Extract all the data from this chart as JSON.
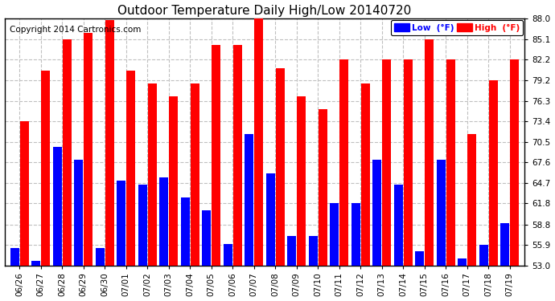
{
  "title": "Outdoor Temperature Daily High/Low 20140720",
  "copyright": "Copyright 2014 Cartronics.com",
  "legend_low": "Low  (°F)",
  "legend_high": "High  (°F)",
  "dates": [
    "06/26",
    "06/27",
    "06/28",
    "06/29",
    "06/30",
    "07/01",
    "07/02",
    "07/03",
    "07/04",
    "07/05",
    "07/06",
    "07/07",
    "07/08",
    "07/09",
    "07/10",
    "07/11",
    "07/12",
    "07/13",
    "07/14",
    "07/15",
    "07/16",
    "07/17",
    "07/18",
    "07/19"
  ],
  "highs": [
    73.4,
    80.6,
    85.1,
    86.0,
    87.8,
    80.6,
    78.8,
    77.0,
    78.8,
    84.2,
    84.2,
    88.0,
    81.0,
    77.0,
    75.2,
    82.2,
    78.8,
    82.2,
    82.2,
    85.1,
    82.2,
    71.6,
    79.2,
    82.2
  ],
  "lows": [
    55.4,
    53.6,
    69.8,
    68.0,
    55.4,
    65.0,
    64.4,
    65.5,
    62.6,
    60.8,
    56.0,
    71.6,
    66.0,
    57.2,
    57.2,
    61.8,
    61.8,
    68.0,
    64.4,
    55.0,
    68.0,
    54.0,
    55.9,
    59.0
  ],
  "ymin": 53.0,
  "ymax": 88.0,
  "yticks": [
    53.0,
    55.9,
    58.8,
    61.8,
    64.7,
    67.6,
    70.5,
    73.4,
    76.3,
    79.2,
    82.2,
    85.1,
    88.0
  ],
  "color_high": "#ff0000",
  "color_low": "#0000ff",
  "background_color": "#ffffff",
  "grid_color": "#c0c0c0",
  "title_fontsize": 11,
  "copyright_fontsize": 7.5
}
